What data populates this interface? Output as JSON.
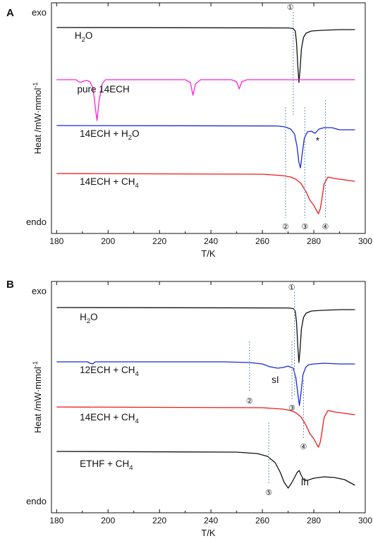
{
  "chart_data": [
    {
      "type": "line",
      "panel": "A",
      "xlabel": "T/K",
      "ylabel": {
        "main": "Heat /mW·mmol",
        "sup": "-1"
      },
      "xlim": [
        178,
        300
      ],
      "xticks": [
        180,
        200,
        220,
        240,
        260,
        280,
        300
      ],
      "top_label": "exo",
      "bottom_label": "endo",
      "series": [
        {
          "name": {
            "pre": "H",
            "sub": "2",
            "post": "O"
          },
          "color": "#111111",
          "baseline": 0,
          "label_at": [
            187,
            16
          ],
          "x": [
            180,
            270,
            272,
            272.8,
            273.3,
            273.8,
            274.2,
            274.6,
            275.2,
            276,
            277,
            279,
            283,
            290,
            296
          ],
          "y": [
            0,
            -0.6,
            -1.5,
            -5,
            -22,
            -55,
            -78,
            -62,
            -30,
            -14,
            -8,
            -5,
            -4,
            -3,
            -3
          ]
        },
        {
          "name": {
            "pre": "pure 14ECH",
            "sub": "",
            "post": ""
          },
          "color": "#ff22dd",
          "baseline": 74,
          "label_at": [
            188,
            92
          ],
          "x": [
            180,
            187.5,
            188.6,
            189.6,
            190.5,
            191.8,
            193,
            194.2,
            195,
            195.7,
            196.5,
            197.8,
            199,
            230,
            232,
            233,
            234,
            236,
            248,
            250,
            251,
            252,
            254,
            296
          ],
          "y": [
            0,
            0,
            -3,
            -3.6,
            -2,
            -1,
            -3,
            -12,
            -38,
            -58,
            -30,
            -5,
            0,
            0,
            -4,
            -22,
            -6,
            0,
            0,
            -3,
            -13,
            -3,
            0,
            0
          ]
        },
        {
          "name": {
            "pre": "14ECH + H",
            "sub": "2",
            "post": "O"
          },
          "color": "#1a2bd8",
          "baseline": 139,
          "label_at": [
            189,
            155
          ],
          "x": [
            180,
            266,
            269,
            271,
            272.5,
            273.5,
            274.2,
            274.8,
            275.5,
            276.3,
            277.5,
            279,
            280.5,
            282,
            284,
            287,
            290,
            296
          ],
          "y": [
            0,
            -0.6,
            -2,
            -5,
            -12,
            -30,
            -52,
            -60,
            -40,
            -18,
            -9,
            -8,
            -11,
            -5,
            -3,
            -3,
            -6,
            -6
          ]
        },
        {
          "name": {
            "pre": "14ECH + CH",
            "sub": "4",
            "post": ""
          },
          "color": "#ee1a1a",
          "baseline": 207,
          "label_at": [
            189,
            223
          ],
          "x": [
            180,
            260,
            268,
            271,
            273,
            275,
            277,
            278.5,
            280,
            281,
            281.8,
            282.5,
            283.2,
            284,
            285.5,
            288,
            292,
            296
          ],
          "y": [
            0,
            -1,
            -3,
            -5,
            -8,
            -14,
            -26,
            -38,
            -45,
            -52,
            -57,
            -50,
            -35,
            -15,
            -5,
            -7,
            -9,
            -11
          ]
        }
      ],
      "markers": [
        {
          "number": "①",
          "x": 272,
          "line": [
            0,
            125
          ]
        },
        {
          "number": "②",
          "x": 269,
          "line": [
            135,
            270
          ]
        },
        {
          "number": "③",
          "x": 276.5,
          "line": [
            135,
            270
          ]
        },
        {
          "number": "④",
          "x": 284.5,
          "line": [
            125,
            270
          ]
        }
      ],
      "star": "*"
    },
    {
      "type": "line",
      "panel": "B",
      "xlabel": "T/K",
      "ylabel": {
        "main": "Heat /mW·mmol",
        "sup": "-1"
      },
      "xlim": [
        178,
        300
      ],
      "xticks": [
        180,
        200,
        220,
        240,
        260,
        280,
        300
      ],
      "top_label": "exo",
      "bottom_label": "endo",
      "series": [
        {
          "name": {
            "pre": "H",
            "sub": "2",
            "post": "O"
          },
          "color": "#111111",
          "baseline": 0,
          "label_at": [
            189,
            18
          ],
          "x": [
            180,
            270,
            272,
            272.8,
            273.3,
            273.8,
            274.2,
            274.6,
            275.2,
            276,
            277,
            279,
            283,
            290,
            296
          ],
          "y": [
            0,
            -0.6,
            -1.5,
            -5,
            -22,
            -55,
            -78,
            -62,
            -30,
            -14,
            -8,
            -5,
            -4,
            -3,
            -3
          ]
        },
        {
          "name": {
            "pre": "12ECH + CH",
            "sub": "4",
            "post": ""
          },
          "color": "#1a2bd8",
          "baseline": 77,
          "label_at": [
            189,
            93
          ],
          "x": [
            180,
            192,
            193,
            194,
            195,
            245,
            255,
            260,
            263,
            266,
            268,
            270,
            272,
            273,
            273.8,
            274.4,
            275,
            275.8,
            276.8,
            278,
            280,
            284,
            290,
            296
          ],
          "y": [
            0,
            0,
            -2,
            -3,
            0,
            0,
            -1,
            -3,
            -7,
            -9,
            -8,
            -6,
            -9,
            -22,
            -45,
            -62,
            -45,
            -18,
            -8,
            -4,
            -3,
            -2,
            -3,
            -3
          ]
        },
        {
          "name": {
            "pre": "14ECH + CH",
            "sub": "4",
            "post": ""
          },
          "color": "#ee1a1a",
          "baseline": 141,
          "label_at": [
            189,
            160
          ],
          "x": [
            180,
            260,
            268,
            271,
            273,
            275,
            277,
            278.5,
            280,
            281,
            281.8,
            282.5,
            283.2,
            284,
            285.5,
            288,
            292,
            296
          ],
          "y": [
            0,
            -1,
            -3,
            -5,
            -8,
            -14,
            -26,
            -38,
            -45,
            -52,
            -57,
            -50,
            -35,
            -15,
            -5,
            -7,
            -9,
            -11
          ]
        },
        {
          "name": {
            "pre": "ETHF + CH",
            "sub": "4",
            "post": ""
          },
          "color": "#111111",
          "baseline": 204,
          "label_at": [
            189,
            226
          ],
          "x": [
            180,
            250,
            258,
            262,
            265,
            267,
            268.5,
            270,
            271.5,
            272.5,
            273.5,
            274.3,
            275,
            276,
            277.5,
            280,
            284,
            288,
            292,
            296
          ],
          "y": [
            0,
            -1,
            -3,
            -7,
            -16,
            -30,
            -44,
            -52,
            -44,
            -37,
            -30,
            -27,
            -33,
            -40,
            -41,
            -38,
            -36,
            -37,
            -40,
            -48
          ]
        }
      ],
      "markers": [
        {
          "number": "①",
          "x": 272.5,
          "line": [
            0,
            125
          ]
        },
        {
          "number": "②",
          "x": 255,
          "line": [
            70,
            120
          ]
        },
        {
          "number": "③",
          "x": 271.5,
          "line": [
            70,
            130
          ]
        },
        {
          "number": "④",
          "x": 276,
          "line": [
            125,
            185
          ]
        },
        {
          "number": "⑤",
          "x": 262.5,
          "line": [
            185,
            250
          ]
        }
      ],
      "annotations": [
        {
          "text": "sI",
          "x": 265,
          "offset": 107
        },
        {
          "text": "Ih",
          "x": 276.5,
          "offset": 252
        }
      ]
    }
  ]
}
